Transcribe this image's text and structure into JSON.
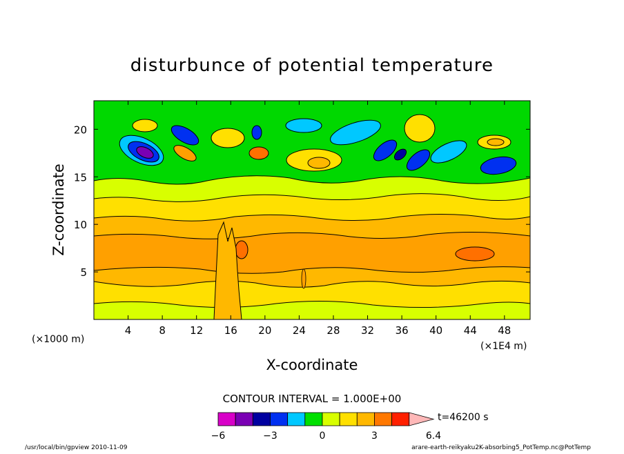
{
  "chart_data": {
    "type": "contour",
    "title": "disturbunce of potential temperature",
    "xlabel": "X-coordinate",
    "ylabel": "Z-coordinate",
    "x_unit_left": "(×1000 m)",
    "x_unit_right": "(×1E4 m)",
    "x_ticks": [
      "4",
      "8",
      "12",
      "16",
      "20",
      "24",
      "28",
      "32",
      "36",
      "40",
      "44",
      "48"
    ],
    "x_tick_values": [
      4,
      8,
      12,
      16,
      20,
      24,
      28,
      32,
      36,
      40,
      44,
      48
    ],
    "y_ticks": [
      "5",
      "10",
      "15",
      "20"
    ],
    "y_tick_values": [
      5,
      10,
      15,
      20
    ],
    "xlim": [
      0,
      51
    ],
    "ylim": [
      0,
      23
    ],
    "contour_interval": "CONTOUR INTERVAL = 1.000E+00",
    "time_label": "t=46200 s",
    "colorbar": {
      "labels": [
        "−6",
        "−3",
        "0",
        "3",
        "6.4"
      ],
      "label_values": [
        -6,
        -3,
        0,
        3,
        6.4
      ],
      "levels": [
        -6,
        -5,
        -4,
        -3,
        -2,
        -1,
        0,
        1,
        2,
        3,
        4,
        5,
        6.4
      ],
      "colors": [
        "#d800c8",
        "#7a00b4",
        "#0000a0",
        "#0030f0",
        "#00c8ff",
        "#00e000",
        "#d8ff00",
        "#ffe000",
        "#ffb800",
        "#ff7800",
        "#ff2000",
        "#ff7070",
        "#ffb8b8"
      ]
    },
    "colors": {
      "background": "#00d800",
      "lowest_layer": "#d8ff00",
      "lower_band": "#ffc000",
      "middle_band": "#ffa000",
      "peak": "#ff7000"
    }
  },
  "footer": {
    "left": "/usr/local/bin/gpview  2010-11-09",
    "right": "arare-earth-reikyaku2K-absorbing5_PotTemp.nc@PotTemp"
  }
}
